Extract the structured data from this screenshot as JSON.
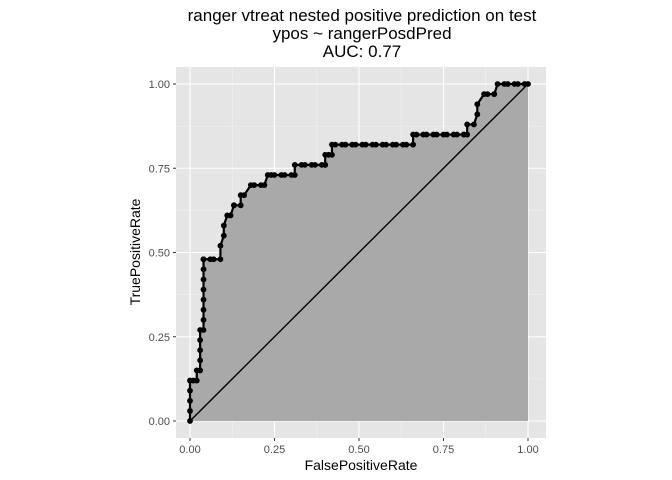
{
  "chart_data": {
    "type": "line",
    "title": "ranger vtreat nested positive prediction on test",
    "subtitle": "ypos ~ rangerPosdPred",
    "caption": "AUC: 0.77",
    "xlabel": "FalsePositiveRate",
    "ylabel": "TruePositiveRate",
    "xlim": [
      0,
      1
    ],
    "ylim": [
      0,
      1
    ],
    "x_ticks": [
      "0.00",
      "0.25",
      "0.50",
      "0.75",
      "1.00"
    ],
    "y_ticks": [
      "0.00",
      "0.25",
      "0.50",
      "0.75",
      "1.00"
    ],
    "grid": true,
    "colors": {
      "panel": "#e5e5e5",
      "grid": "#ffffff",
      "area": "#a9a9a9",
      "line": "#000000"
    },
    "diagonal": {
      "x": [
        0,
        1
      ],
      "y": [
        0,
        1
      ]
    },
    "series": [
      {
        "x": [
          0,
          0,
          0,
          0,
          0,
          0.01,
          0.02,
          0.02,
          0.03,
          0.03,
          0.03,
          0.03,
          0.03,
          0.04,
          0.04,
          0.04,
          0.04,
          0.04,
          0.04,
          0.04,
          0.04,
          0.04,
          0.06,
          0.07,
          0.09,
          0.09,
          0.1,
          0.1,
          0.11,
          0.12,
          0.13,
          0.13,
          0.15,
          0.15,
          0.16,
          0.18,
          0.19,
          0.21,
          0.22,
          0.23,
          0.24,
          0.25,
          0.27,
          0.28,
          0.3,
          0.31,
          0.31,
          0.33,
          0.34,
          0.36,
          0.37,
          0.39,
          0.4,
          0.4,
          0.4,
          0.41,
          0.42,
          0.42,
          0.43,
          0.45,
          0.46,
          0.48,
          0.49,
          0.51,
          0.52,
          0.54,
          0.55,
          0.57,
          0.58,
          0.6,
          0.61,
          0.63,
          0.64,
          0.66,
          0.66,
          0.67,
          0.69,
          0.7,
          0.72,
          0.73,
          0.75,
          0.76,
          0.78,
          0.79,
          0.81,
          0.81,
          0.82,
          0.82,
          0.84,
          0.85,
          0.85,
          0.87,
          0.88,
          0.9,
          0.9,
          0.91,
          0.93,
          0.94,
          0.96,
          0.97,
          0.99,
          1
        ],
        "y": [
          0,
          0.03,
          0.06,
          0.09,
          0.12,
          0.12,
          0.12,
          0.15,
          0.15,
          0.18,
          0.21,
          0.24,
          0.27,
          0.27,
          0.3,
          0.33,
          0.36,
          0.39,
          0.42,
          0.45,
          0.48,
          0.48,
          0.48,
          0.48,
          0.48,
          0.52,
          0.55,
          0.58,
          0.61,
          0.61,
          0.64,
          0.64,
          0.64,
          0.67,
          0.67,
          0.7,
          0.7,
          0.7,
          0.7,
          0.73,
          0.73,
          0.73,
          0.73,
          0.73,
          0.73,
          0.73,
          0.76,
          0.76,
          0.76,
          0.76,
          0.76,
          0.76,
          0.76,
          0.76,
          0.79,
          0.79,
          0.79,
          0.82,
          0.82,
          0.82,
          0.82,
          0.82,
          0.82,
          0.82,
          0.82,
          0.82,
          0.82,
          0.82,
          0.82,
          0.82,
          0.82,
          0.82,
          0.82,
          0.82,
          0.85,
          0.85,
          0.85,
          0.85,
          0.85,
          0.85,
          0.85,
          0.85,
          0.85,
          0.85,
          0.85,
          0.85,
          0.85,
          0.88,
          0.88,
          0.91,
          0.94,
          0.97,
          0.97,
          0.97,
          0.97,
          1,
          1,
          1,
          1,
          1,
          1,
          1
        ]
      }
    ]
  }
}
